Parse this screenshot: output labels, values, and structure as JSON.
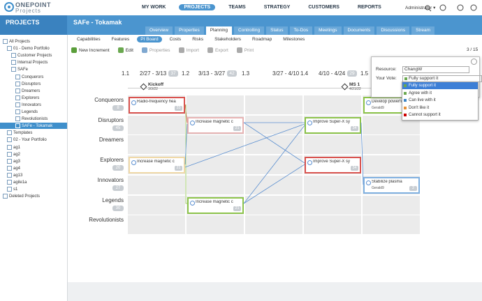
{
  "header": {
    "logo": "ONEPOINT",
    "logo_sub": "Projects",
    "nav": [
      "MY WORK",
      "PROJECTS",
      "TEAMS",
      "STRATEGY",
      "CUSTOMERS",
      "REPORTS"
    ],
    "user": "Administrator"
  },
  "section_title": "PROJECTS",
  "project_title": "SAFe - Tokamak",
  "tabs": [
    "Overview",
    "Properties",
    "Planning",
    "Controlling",
    "Status",
    "To-Dos",
    "Meetings",
    "Documents",
    "Discussions",
    "Stream"
  ],
  "sidebar": [
    {
      "label": "All Projects",
      "children": [
        {
          "label": "01 - Demo Portfolio",
          "children": [
            {
              "label": "Customer Projects"
            },
            {
              "label": "Internal Projects"
            },
            {
              "label": "SAFe",
              "children": [
                {
                  "label": "Conquerors"
                },
                {
                  "label": "Disruptors"
                },
                {
                  "label": "Dreamers"
                },
                {
                  "label": "Explorers"
                },
                {
                  "label": "Innovators"
                },
                {
                  "label": "Legends"
                },
                {
                  "label": "Revolutionists"
                },
                {
                  "label": "SAFe - Tokamak"
                }
              ]
            }
          ]
        },
        {
          "label": "Templates"
        },
        {
          "label": "02 - Your Portfolio"
        },
        {
          "label": "ag1"
        },
        {
          "label": "ag2"
        },
        {
          "label": "ag3"
        },
        {
          "label": "ag4"
        },
        {
          "label": "ag13"
        },
        {
          "label": "agile1a"
        },
        {
          "label": "s1"
        }
      ]
    },
    {
      "label": "Deleted Projects"
    }
  ],
  "subtabs": [
    "Capabilities",
    "Features",
    "PI Board",
    "Costs",
    "Risks",
    "Stakeholders",
    "Roadmap",
    "Milestones"
  ],
  "toolbar": [
    "New Increment",
    "Edit",
    "Properties",
    "Import",
    "Export",
    "Print"
  ],
  "pager": "3 / 15",
  "board": {
    "columns": [
      {
        "label": "1.1"
      },
      {
        "label": "2/27 - 3/13",
        "badge": 37
      },
      {
        "label": "1.2"
      },
      {
        "label": "3/13 - 3/27",
        "badge": 42
      },
      {
        "label": "1.3"
      },
      {
        "label": "3/27 - 4/10"
      },
      {
        "label": "1.4"
      },
      {
        "label": "4/10 - 4/24",
        "badge": 29
      },
      {
        "label": "1.5"
      }
    ],
    "milestones": [
      {
        "name": "Kickoff",
        "date": "3/3/22"
      },
      {
        "name": "MS 1",
        "date": "4/21/22"
      }
    ],
    "rows": [
      {
        "name": "Conquerors",
        "badge": 8,
        "cells": [
          {
            "title": "Radio-frequency hea",
            "badge": 33,
            "color": "#d9534f"
          },
          null,
          null,
          null,
          {
            "title": "Develop powerfu",
            "owner": "Gerald9",
            "color": "#8cc34a"
          }
        ]
      },
      {
        "name": "Disruptors",
        "badge": 45,
        "cells": [
          null,
          {
            "title": "Increase magnetic c",
            "badge": 21,
            "color": "#e6b3b3"
          },
          null,
          {
            "title": "Improve Super-X sy",
            "badge": 34,
            "color": "#8cc34a"
          },
          null
        ]
      },
      {
        "name": "Dreamers",
        "cells": [
          null,
          null,
          null,
          null,
          null
        ]
      },
      {
        "name": "Explorers",
        "badge": 20,
        "cells": [
          {
            "title": "Increase magnetic c",
            "badge": 21,
            "color": "#f0d9a8"
          },
          null,
          null,
          {
            "title": "Improve Super-X sy",
            "badge": 34,
            "color": "#d9534f"
          },
          null
        ]
      },
      {
        "name": "Innovators",
        "badge": 27,
        "cells": [
          null,
          null,
          null,
          null,
          {
            "title": "Stabilize plasma",
            "owner": "Gerald9",
            "badge": 2,
            "color": "#7fb0e0"
          }
        ]
      },
      {
        "name": "Legends",
        "badge": 30,
        "cells": [
          null,
          {
            "title": "Increase magnetic c",
            "badge": 21,
            "color": "#8cc34a"
          },
          null,
          null,
          null
        ]
      },
      {
        "name": "Revolutionists",
        "cells": [
          null,
          null,
          null,
          null,
          null
        ]
      }
    ]
  },
  "popup": {
    "resource_label": "Resource:",
    "resource": "ChangW",
    "vote_label": "Your Vote:",
    "vote": "Fully support it",
    "options": [
      {
        "label": "Fully support it",
        "color": "#6aa84f"
      },
      {
        "label": "Agree with it",
        "color": "#6aa84f"
      },
      {
        "label": "Can live with it",
        "color": "#3d85c6"
      },
      {
        "label": "Don't like it",
        "color": "#e69138"
      },
      {
        "label": "Cannot support it",
        "color": "#cc0000"
      }
    ]
  }
}
